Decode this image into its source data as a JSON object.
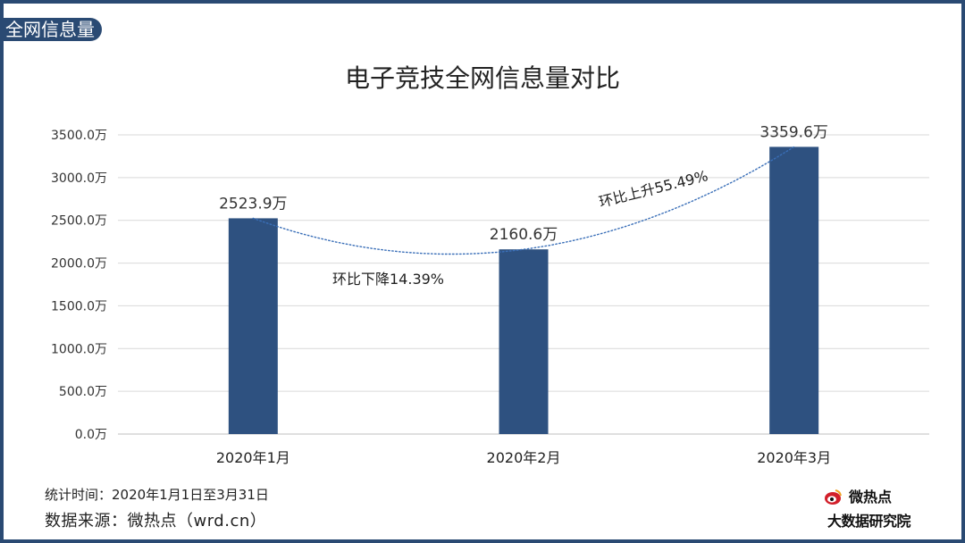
{
  "corner_tag": "全网信息量",
  "footer": {
    "time_label": "统计时间：2020年1月1日至3月31日",
    "source_label": "数据来源：微热点（wrd.cn）"
  },
  "logo": {
    "name": "微热点",
    "sub": "大数据研究院"
  },
  "colors": {
    "bar": "#2e5180",
    "frame": "#2a4a73",
    "trend": "#3a6fb8",
    "grid": "#d9d9d9"
  },
  "chart_data": {
    "type": "bar",
    "title": "电子竞技全网信息量对比",
    "categories": [
      "2020年1月",
      "2020年2月",
      "2020年3月"
    ],
    "values": [
      2523.9,
      2160.6,
      3359.6
    ],
    "data_labels": [
      "2523.9万",
      "2160.6万",
      "3359.6万"
    ],
    "ylim": [
      0,
      3500
    ],
    "y_ticks": [
      {
        "value": 0,
        "label": "0.0万"
      },
      {
        "value": 500,
        "label": "500.0万"
      },
      {
        "value": 1000,
        "label": "1000.0万"
      },
      {
        "value": 1500,
        "label": "1500.0万"
      },
      {
        "value": 2000,
        "label": "2000.0万"
      },
      {
        "value": 2500,
        "label": "2500.0万"
      },
      {
        "value": 3000,
        "label": "3000.0万"
      },
      {
        "value": 3500,
        "label": "3500.0万"
      }
    ],
    "grid": true,
    "trendline": "polynomial-dotted",
    "annotations": [
      "环比下降14.39%",
      "环比上升55.49%"
    ]
  }
}
